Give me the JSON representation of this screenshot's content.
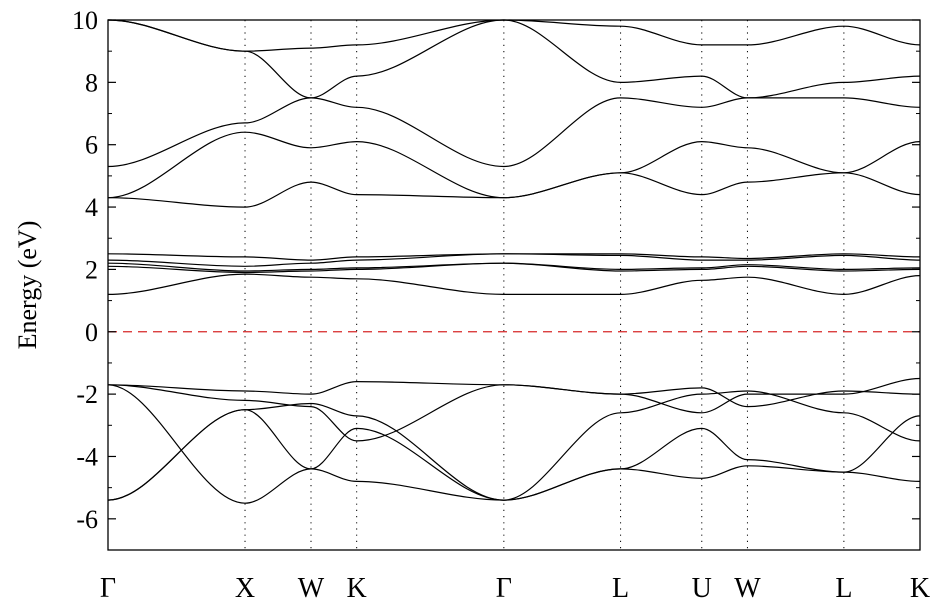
{
  "chart_data": {
    "type": "line",
    "title": "",
    "ylabel": "Energy (eV)",
    "xlabel": "",
    "ylim": [
      -7,
      10
    ],
    "y_ticks": [
      -6,
      -4,
      -2,
      0,
      2,
      4,
      6,
      8,
      10
    ],
    "y_tick_labels": [
      "-6",
      "-4",
      "-2",
      "0",
      "2",
      "4",
      "6",
      "8",
      "10"
    ],
    "x_range": [
      0,
      8
    ],
    "high_symmetry_points": [
      {
        "label": "Γ",
        "x": 0
      },
      {
        "label": "X",
        "x": 1.35
      },
      {
        "label": "W",
        "x": 2.0
      },
      {
        "label": "K",
        "x": 2.45
      },
      {
        "label": "Γ",
        "x": 3.9
      },
      {
        "label": "L",
        "x": 5.05
      },
      {
        "label": "U",
        "x": 5.85
      },
      {
        "label": "W",
        "x": 6.3
      },
      {
        "label": "L",
        "x": 7.25
      },
      {
        "label": "K",
        "x": 8.0
      }
    ],
    "fermi_level": {
      "value": 0,
      "style": "dashed",
      "color": "#d62728"
    },
    "series_color": "#000000",
    "series": [
      {
        "values": [
          -5.4,
          -2.5,
          -2.3,
          -2.7,
          -5.4,
          -4.4,
          -3.1,
          -4.1,
          -4.5,
          -2.7
        ]
      },
      {
        "values": [
          -5.4,
          -2.5,
          -4.4,
          -4.8,
          -5.4,
          -4.4,
          -4.7,
          -4.3,
          -4.5,
          -4.8
        ]
      },
      {
        "values": [
          -1.7,
          -5.5,
          -4.4,
          -3.1,
          -5.4,
          -2.6,
          -2.0,
          -1.9,
          -2.6,
          -3.5
        ]
      },
      {
        "values": [
          -1.7,
          -2.2,
          -2.4,
          -3.5,
          -1.7,
          -2.0,
          -1.8,
          -2.4,
          -1.9,
          -2.0
        ]
      },
      {
        "values": [
          -1.7,
          -1.9,
          -2.0,
          -1.6,
          -1.7,
          -2.0,
          -2.6,
          -2.0,
          -2.0,
          -1.5
        ]
      },
      {
        "values": [
          1.2,
          1.85,
          1.75,
          1.7,
          1.2,
          1.2,
          1.65,
          1.75,
          1.2,
          1.8
        ]
      },
      {
        "values": [
          2.1,
          1.9,
          1.95,
          2.0,
          2.2,
          1.95,
          2.0,
          2.1,
          1.95,
          2.0
        ]
      },
      {
        "values": [
          2.2,
          1.95,
          2.0,
          2.05,
          2.2,
          2.0,
          2.05,
          2.15,
          2.0,
          2.05
        ]
      },
      {
        "values": [
          2.3,
          2.1,
          2.2,
          2.3,
          2.5,
          2.45,
          2.3,
          2.3,
          2.45,
          2.3
        ]
      },
      {
        "values": [
          2.5,
          2.4,
          2.3,
          2.4,
          2.5,
          2.5,
          2.4,
          2.35,
          2.5,
          2.4
        ]
      },
      {
        "values": [
          4.3,
          4.0,
          4.8,
          4.4,
          4.3,
          5.1,
          4.4,
          4.8,
          5.1,
          4.4
        ]
      },
      {
        "values": [
          4.3,
          6.4,
          5.9,
          6.1,
          4.3,
          5.1,
          6.1,
          5.9,
          5.1,
          6.1
        ]
      },
      {
        "values": [
          5.3,
          6.7,
          7.5,
          7.2,
          5.3,
          7.5,
          7.2,
          7.5,
          7.5,
          7.2
        ]
      },
      {
        "values": [
          10.0,
          9.0,
          7.5,
          8.2,
          10.0,
          8.0,
          8.2,
          7.5,
          8.0,
          8.2
        ]
      },
      {
        "values": [
          10.0,
          9.0,
          9.1,
          9.2,
          10.0,
          9.8,
          9.2,
          9.2,
          9.8,
          9.2
        ]
      }
    ]
  }
}
